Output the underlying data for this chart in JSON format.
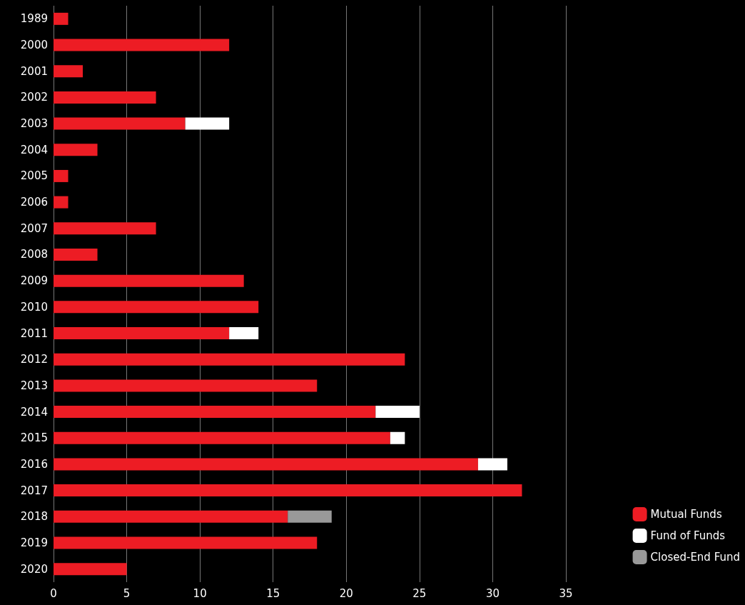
{
  "chart_data": {
    "type": "bar",
    "orientation": "horizontal",
    "stacked": true,
    "categories": [
      "1989",
      "2000",
      "2001",
      "2002",
      "2003",
      "2004",
      "2005",
      "2006",
      "2007",
      "2008",
      "2009",
      "2010",
      "2011",
      "2012",
      "2013",
      "2014",
      "2015",
      "2016",
      "2017",
      "2018",
      "2019",
      "2020"
    ],
    "series": [
      {
        "name": "Mutual Funds",
        "color": "#ed1c24",
        "values": [
          1,
          12,
          2,
          7,
          9,
          3,
          1,
          1,
          7,
          3,
          13,
          14,
          12,
          24,
          18,
          22,
          23,
          29,
          32,
          16,
          18,
          5
        ]
      },
      {
        "name": "Fund of Funds",
        "color": "#ffffff",
        "values": [
          null,
          null,
          null,
          null,
          3,
          null,
          null,
          null,
          null,
          null,
          null,
          null,
          2,
          null,
          null,
          3,
          1,
          2,
          null,
          null,
          null,
          null
        ]
      },
      {
        "name": "Closed-End Fund",
        "color": "#999999",
        "values": [
          null,
          null,
          null,
          null,
          null,
          null,
          null,
          null,
          null,
          null,
          null,
          null,
          null,
          null,
          null,
          null,
          null,
          null,
          null,
          3,
          null,
          null
        ]
      }
    ],
    "xlim": [
      0,
      35
    ],
    "xticks": [
      0,
      5,
      10,
      15,
      20,
      25,
      30,
      35
    ],
    "grid": "x",
    "legend": "bottom right"
  }
}
